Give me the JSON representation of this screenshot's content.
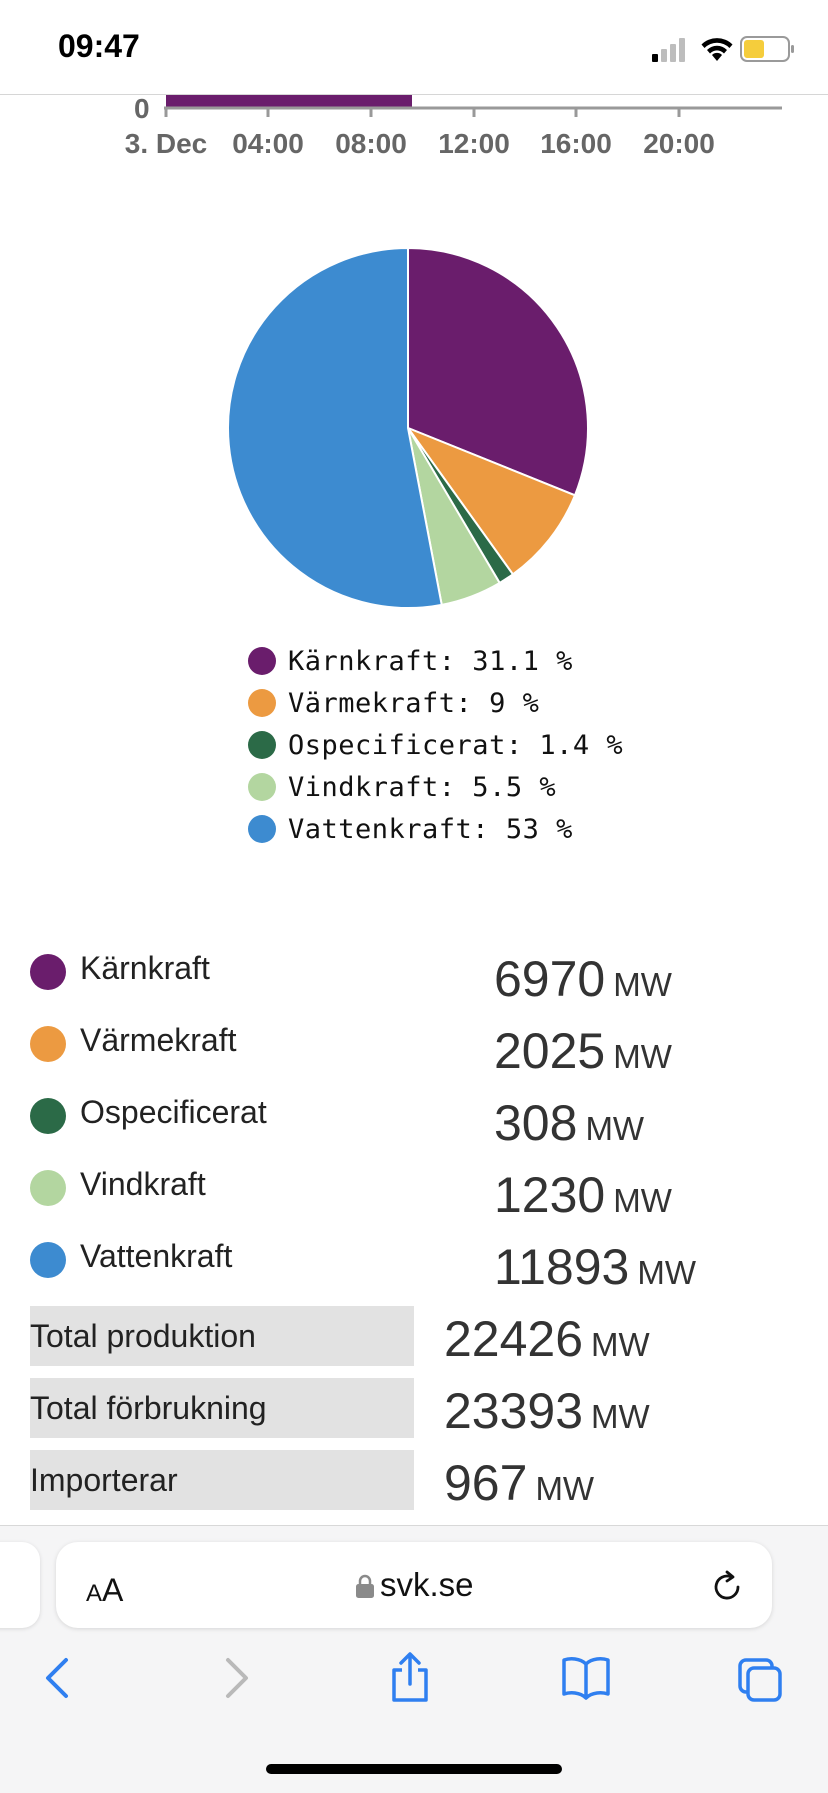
{
  "status_bar": {
    "time": "09:47"
  },
  "top_chart": {
    "y_zero_label": "0",
    "x_ticks": [
      "3. Dec",
      "04:00",
      "08:00",
      "12:00",
      "16:00",
      "20:00"
    ]
  },
  "chart_data": {
    "type": "pie",
    "slices": [
      {
        "name": "Kärnkraft",
        "value": 31.1,
        "color": "#6a1d6c"
      },
      {
        "name": "Värmekraft",
        "value": 9,
        "color": "#ec9a41"
      },
      {
        "name": "Ospecificerat",
        "value": 1.4,
        "color": "#2b6a47"
      },
      {
        "name": "Vindkraft",
        "value": 5.5,
        "color": "#b3d6a0"
      },
      {
        "name": "Vattenkraft",
        "value": 53,
        "color": "#3d8bd0"
      }
    ]
  },
  "pie_legend": [
    {
      "text": "Kärnkraft: 31.1 %",
      "color": "#6a1d6c"
    },
    {
      "text": "Värmekraft: 9 %",
      "color": "#ec9a41"
    },
    {
      "text": "Ospecificerat: 1.4 %",
      "color": "#2b6a47"
    },
    {
      "text": "Vindkraft: 5.5 %",
      "color": "#b3d6a0"
    },
    {
      "text": "Vattenkraft: 53 %",
      "color": "#3d8bd0"
    }
  ],
  "breakdown": [
    {
      "name": "Kärnkraft",
      "value": "6970",
      "unit": "MW",
      "color": "#6a1d6c"
    },
    {
      "name": "Värmekraft",
      "value": "2025",
      "unit": "MW",
      "color": "#ec9a41"
    },
    {
      "name": "Ospecificerat",
      "value": "308",
      "unit": "MW",
      "color": "#2b6a47"
    },
    {
      "name": "Vindkraft",
      "value": "1230",
      "unit": "MW",
      "color": "#b3d6a0"
    },
    {
      "name": "Vattenkraft",
      "value": "11893",
      "unit": "MW",
      "color": "#3d8bd0"
    }
  ],
  "totals": [
    {
      "label": "Total produktion",
      "value": "22426",
      "unit": "MW"
    },
    {
      "label": "Total förbrukning",
      "value": "23393",
      "unit": "MW"
    },
    {
      "label": "Importerar",
      "value": "967",
      "unit": "MW"
    }
  ],
  "browser": {
    "text_size_label_small": "A",
    "text_size_label_large": "A",
    "url": "svk.se"
  },
  "icons": {
    "signal": "signal-icon",
    "wifi": "wifi-icon",
    "battery": "battery-icon",
    "lock": "lock-icon",
    "reload": "reload-icon",
    "back": "back-icon",
    "forward": "forward-icon",
    "share": "share-icon",
    "bookmarks": "bookmarks-icon",
    "tabs": "tabs-icon"
  }
}
